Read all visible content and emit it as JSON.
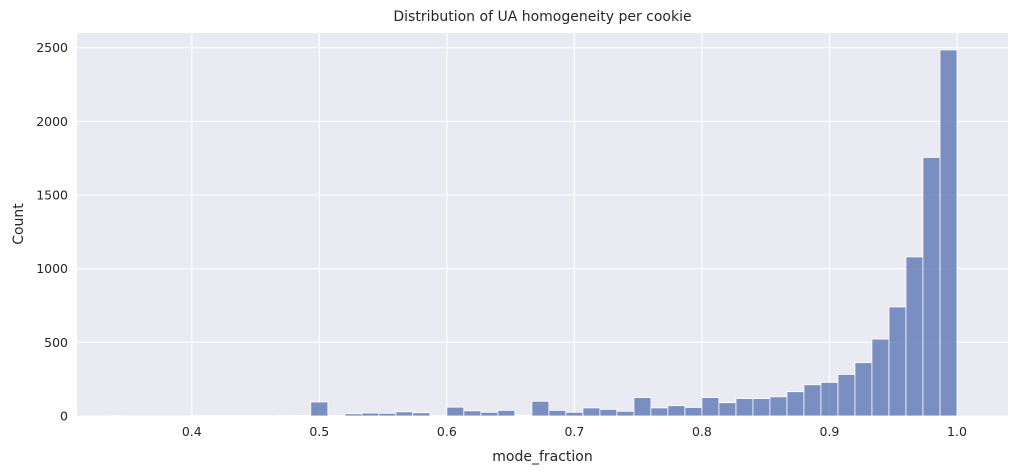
{
  "chart_data": {
    "type": "bar",
    "title": "Distribution of UA homogeneity per cookie",
    "xlabel": "mode_fraction",
    "ylabel": "Count",
    "xlim": [
      0.31,
      1.04
    ],
    "ylim": [
      0,
      2600
    ],
    "xticks": [
      0.4,
      0.5,
      0.6,
      0.7,
      0.8,
      0.9,
      1.0
    ],
    "xtick_labels": [
      "0.4",
      "0.5",
      "0.6",
      "0.7",
      "0.8",
      "0.9",
      "1.0"
    ],
    "yticks": [
      0,
      500,
      1000,
      1500,
      2000,
      2500
    ],
    "ytick_labels": [
      "0",
      "500",
      "1000",
      "1500",
      "2000",
      "2500"
    ],
    "grid": true,
    "bin_edges": [
      0.3333,
      0.3467,
      0.36,
      0.3733,
      0.3867,
      0.4,
      0.4133,
      0.4267,
      0.44,
      0.4533,
      0.4667,
      0.48,
      0.4933,
      0.5067,
      0.52,
      0.5333,
      0.5467,
      0.56,
      0.5733,
      0.5867,
      0.6,
      0.6133,
      0.6267,
      0.64,
      0.6533,
      0.6667,
      0.68,
      0.6933,
      0.7067,
      0.72,
      0.7333,
      0.7467,
      0.76,
      0.7733,
      0.7867,
      0.8,
      0.8133,
      0.8267,
      0.84,
      0.8533,
      0.8667,
      0.88,
      0.8933,
      0.9067,
      0.92,
      0.9333,
      0.9467,
      0.96,
      0.9733,
      0.9867,
      1.0
    ],
    "values": [
      2,
      1,
      1,
      1,
      1,
      3,
      2,
      2,
      2,
      2,
      3,
      4,
      95,
      4,
      15,
      20,
      18,
      28,
      22,
      3,
      60,
      35,
      25,
      38,
      5,
      100,
      38,
      25,
      55,
      45,
      32,
      125,
      55,
      70,
      58,
      125,
      90,
      118,
      118,
      130,
      165,
      212,
      228,
      282,
      362,
      522,
      740,
      1080,
      1755,
      2485
    ]
  }
}
